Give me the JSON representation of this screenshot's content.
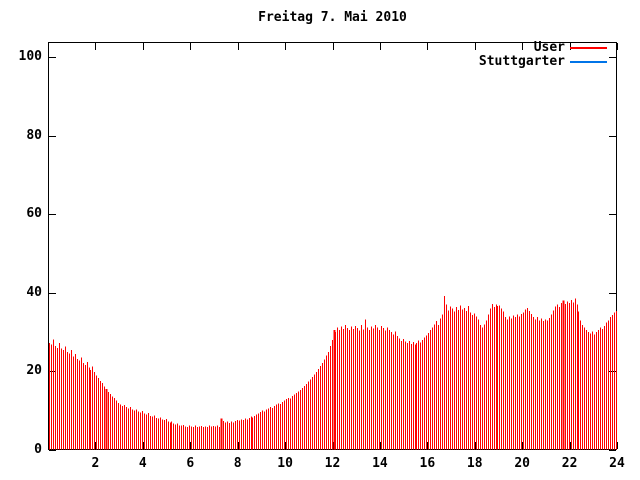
{
  "chart": {
    "title": "Freitag 7. Mai 2010",
    "legend": [
      {
        "label": "User",
        "color": "#ff0000"
      },
      {
        "label": "Stuttgarter",
        "color": "#0074e8"
      }
    ]
  },
  "chart_data": {
    "type": "bar",
    "title": "Freitag 7. Mai 2010",
    "xlabel": "",
    "ylabel": "",
    "xlim": [
      0,
      24
    ],
    "ylim": [
      0,
      104
    ],
    "x_ticks": [
      2,
      4,
      6,
      8,
      10,
      12,
      14,
      16,
      18,
      20,
      22,
      24
    ],
    "y_ticks": [
      0,
      20,
      40,
      60,
      80,
      100
    ],
    "grid": false,
    "legend_position": "top-right",
    "sample_interval_hours": 0.08333,
    "bar_style": "impulses",
    "axis_color": "#000000",
    "background_color": "#ffffff",
    "emphasized_sample_indices": [
      29,
      87,
      144,
      260
    ],
    "series": [
      {
        "name": "User",
        "color": "#ff0000",
        "values": [
          27.3,
          26.8,
          28.1,
          26.5,
          26.0,
          27.2,
          25.8,
          25.4,
          26.3,
          25.0,
          24.6,
          25.5,
          23.8,
          24.5,
          23.2,
          22.8,
          23.5,
          22.2,
          21.6,
          22.4,
          21.0,
          20.4,
          21.2,
          19.8,
          19.0,
          18.3,
          17.6,
          17.0,
          16.2,
          15.5,
          14.8,
          14.2,
          13.6,
          13.2,
          12.6,
          12.0,
          11.6,
          11.2,
          11.5,
          10.9,
          10.6,
          10.9,
          10.3,
          10.0,
          10.3,
          9.8,
          9.6,
          9.9,
          9.3,
          9.0,
          9.4,
          8.7,
          8.5,
          8.8,
          8.2,
          8.0,
          8.3,
          7.8,
          7.6,
          7.9,
          7.2,
          7.0,
          7.3,
          6.7,
          6.5,
          6.8,
          6.3,
          6.2,
          6.4,
          6.0,
          5.9,
          6.2,
          6.0,
          5.9,
          6.2,
          5.8,
          6.0,
          6.1,
          5.8,
          6.0,
          5.9,
          6.2,
          6.0,
          6.1,
          6.0,
          6.2,
          5.9,
          8.0,
          7.4,
          7.0,
          7.2,
          6.9,
          7.3,
          7.0,
          7.4,
          7.6,
          7.5,
          7.8,
          7.6,
          8.0,
          7.8,
          8.2,
          8.5,
          8.3,
          8.7,
          9.0,
          9.3,
          9.7,
          10.0,
          9.8,
          10.3,
          10.6,
          10.9,
          10.7,
          11.2,
          11.6,
          11.9,
          11.7,
          12.2,
          12.6,
          13.0,
          13.3,
          13.1,
          13.7,
          14.1,
          14.5,
          14.9,
          15.3,
          15.8,
          16.3,
          16.8,
          17.4,
          18.0,
          18.6,
          19.2,
          19.9,
          20.6,
          21.4,
          22.2,
          23.0,
          24.0,
          25.0,
          26.5,
          28.0,
          30.5,
          30.0,
          31.2,
          30.6,
          31.5,
          30.8,
          31.8,
          31.0,
          30.5,
          31.4,
          30.8,
          31.6,
          31.0,
          30.4,
          31.8,
          30.7,
          33.2,
          31.2,
          30.6,
          31.5,
          30.9,
          31.8,
          31.2,
          30.6,
          31.6,
          31.0,
          30.4,
          31.2,
          30.6,
          30.0,
          29.4,
          30.2,
          29.0,
          28.4,
          27.8,
          28.2,
          27.6,
          27.2,
          27.8,
          27.0,
          27.5,
          26.8,
          27.3,
          27.9,
          27.4,
          28.0,
          28.6,
          29.2,
          29.8,
          30.5,
          31.2,
          32.0,
          32.8,
          31.8,
          33.5,
          34.5,
          39.2,
          37.0,
          35.5,
          36.5,
          36.0,
          35.2,
          36.4,
          35.6,
          36.8,
          35.8,
          36.2,
          35.4,
          36.6,
          35.0,
          34.4,
          34.8,
          34.0,
          33.2,
          31.8,
          31.2,
          32.0,
          33.0,
          34.5,
          36.0,
          37.2,
          36.4,
          37.0,
          36.6,
          36.8,
          36.0,
          35.2,
          33.8,
          33.2,
          34.0,
          33.5,
          34.2,
          33.8,
          34.5,
          34.0,
          34.6,
          35.0,
          35.8,
          36.2,
          35.4,
          34.6,
          33.8,
          33.2,
          33.8,
          33.0,
          33.5,
          32.8,
          33.2,
          33.0,
          33.6,
          34.5,
          35.5,
          36.5,
          37.0,
          36.4,
          37.4,
          38.0,
          37.2,
          37.8,
          37.4,
          38.2,
          37.6,
          38.6,
          37.0,
          35.2,
          33.0,
          31.8,
          31.2,
          30.6,
          30.0,
          29.6,
          30.2,
          29.4,
          30.0,
          30.6,
          31.2,
          30.8,
          31.6,
          32.4,
          33.0,
          33.8,
          34.4,
          35.0,
          35.4
        ]
      },
      {
        "name": "Stuttgarter",
        "color": "#0074e8",
        "values": []
      }
    ]
  }
}
